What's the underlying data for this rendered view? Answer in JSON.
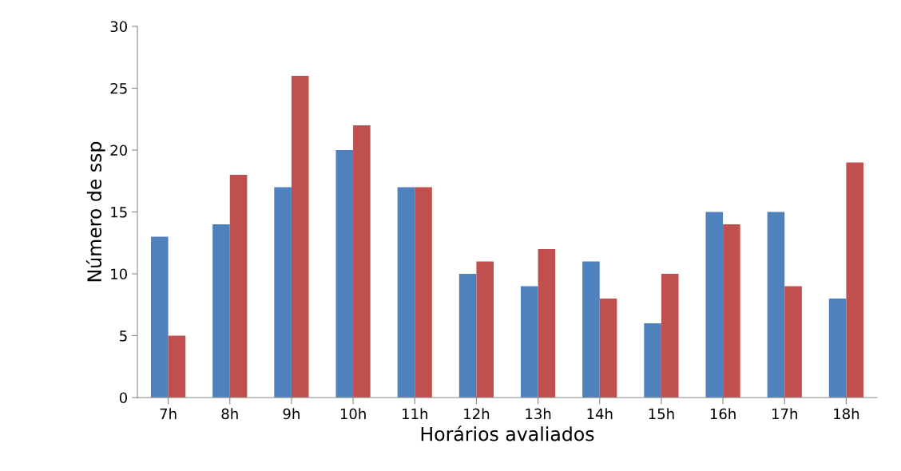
{
  "chart_data": {
    "type": "bar",
    "xlabel": "Horários avaliados",
    "ylabel": "Número de ssp",
    "categories": [
      "7h",
      "8h",
      "9h",
      "10h",
      "11h",
      "12h",
      "13h",
      "14h",
      "15h",
      "16h",
      "17h",
      "18h"
    ],
    "series": [
      {
        "color": "#4f81bd",
        "values": [
          13,
          14,
          17,
          20,
          17,
          10,
          9,
          11,
          6,
          15,
          15,
          8
        ]
      },
      {
        "color": "#c0504d",
        "values": [
          5,
          18,
          26,
          22,
          17,
          11,
          12,
          8,
          10,
          14,
          9,
          19
        ]
      }
    ],
    "ylim": [
      0,
      30
    ],
    "yticks": [
      0,
      5,
      10,
      15,
      20,
      25,
      30
    ],
    "grid": false
  }
}
